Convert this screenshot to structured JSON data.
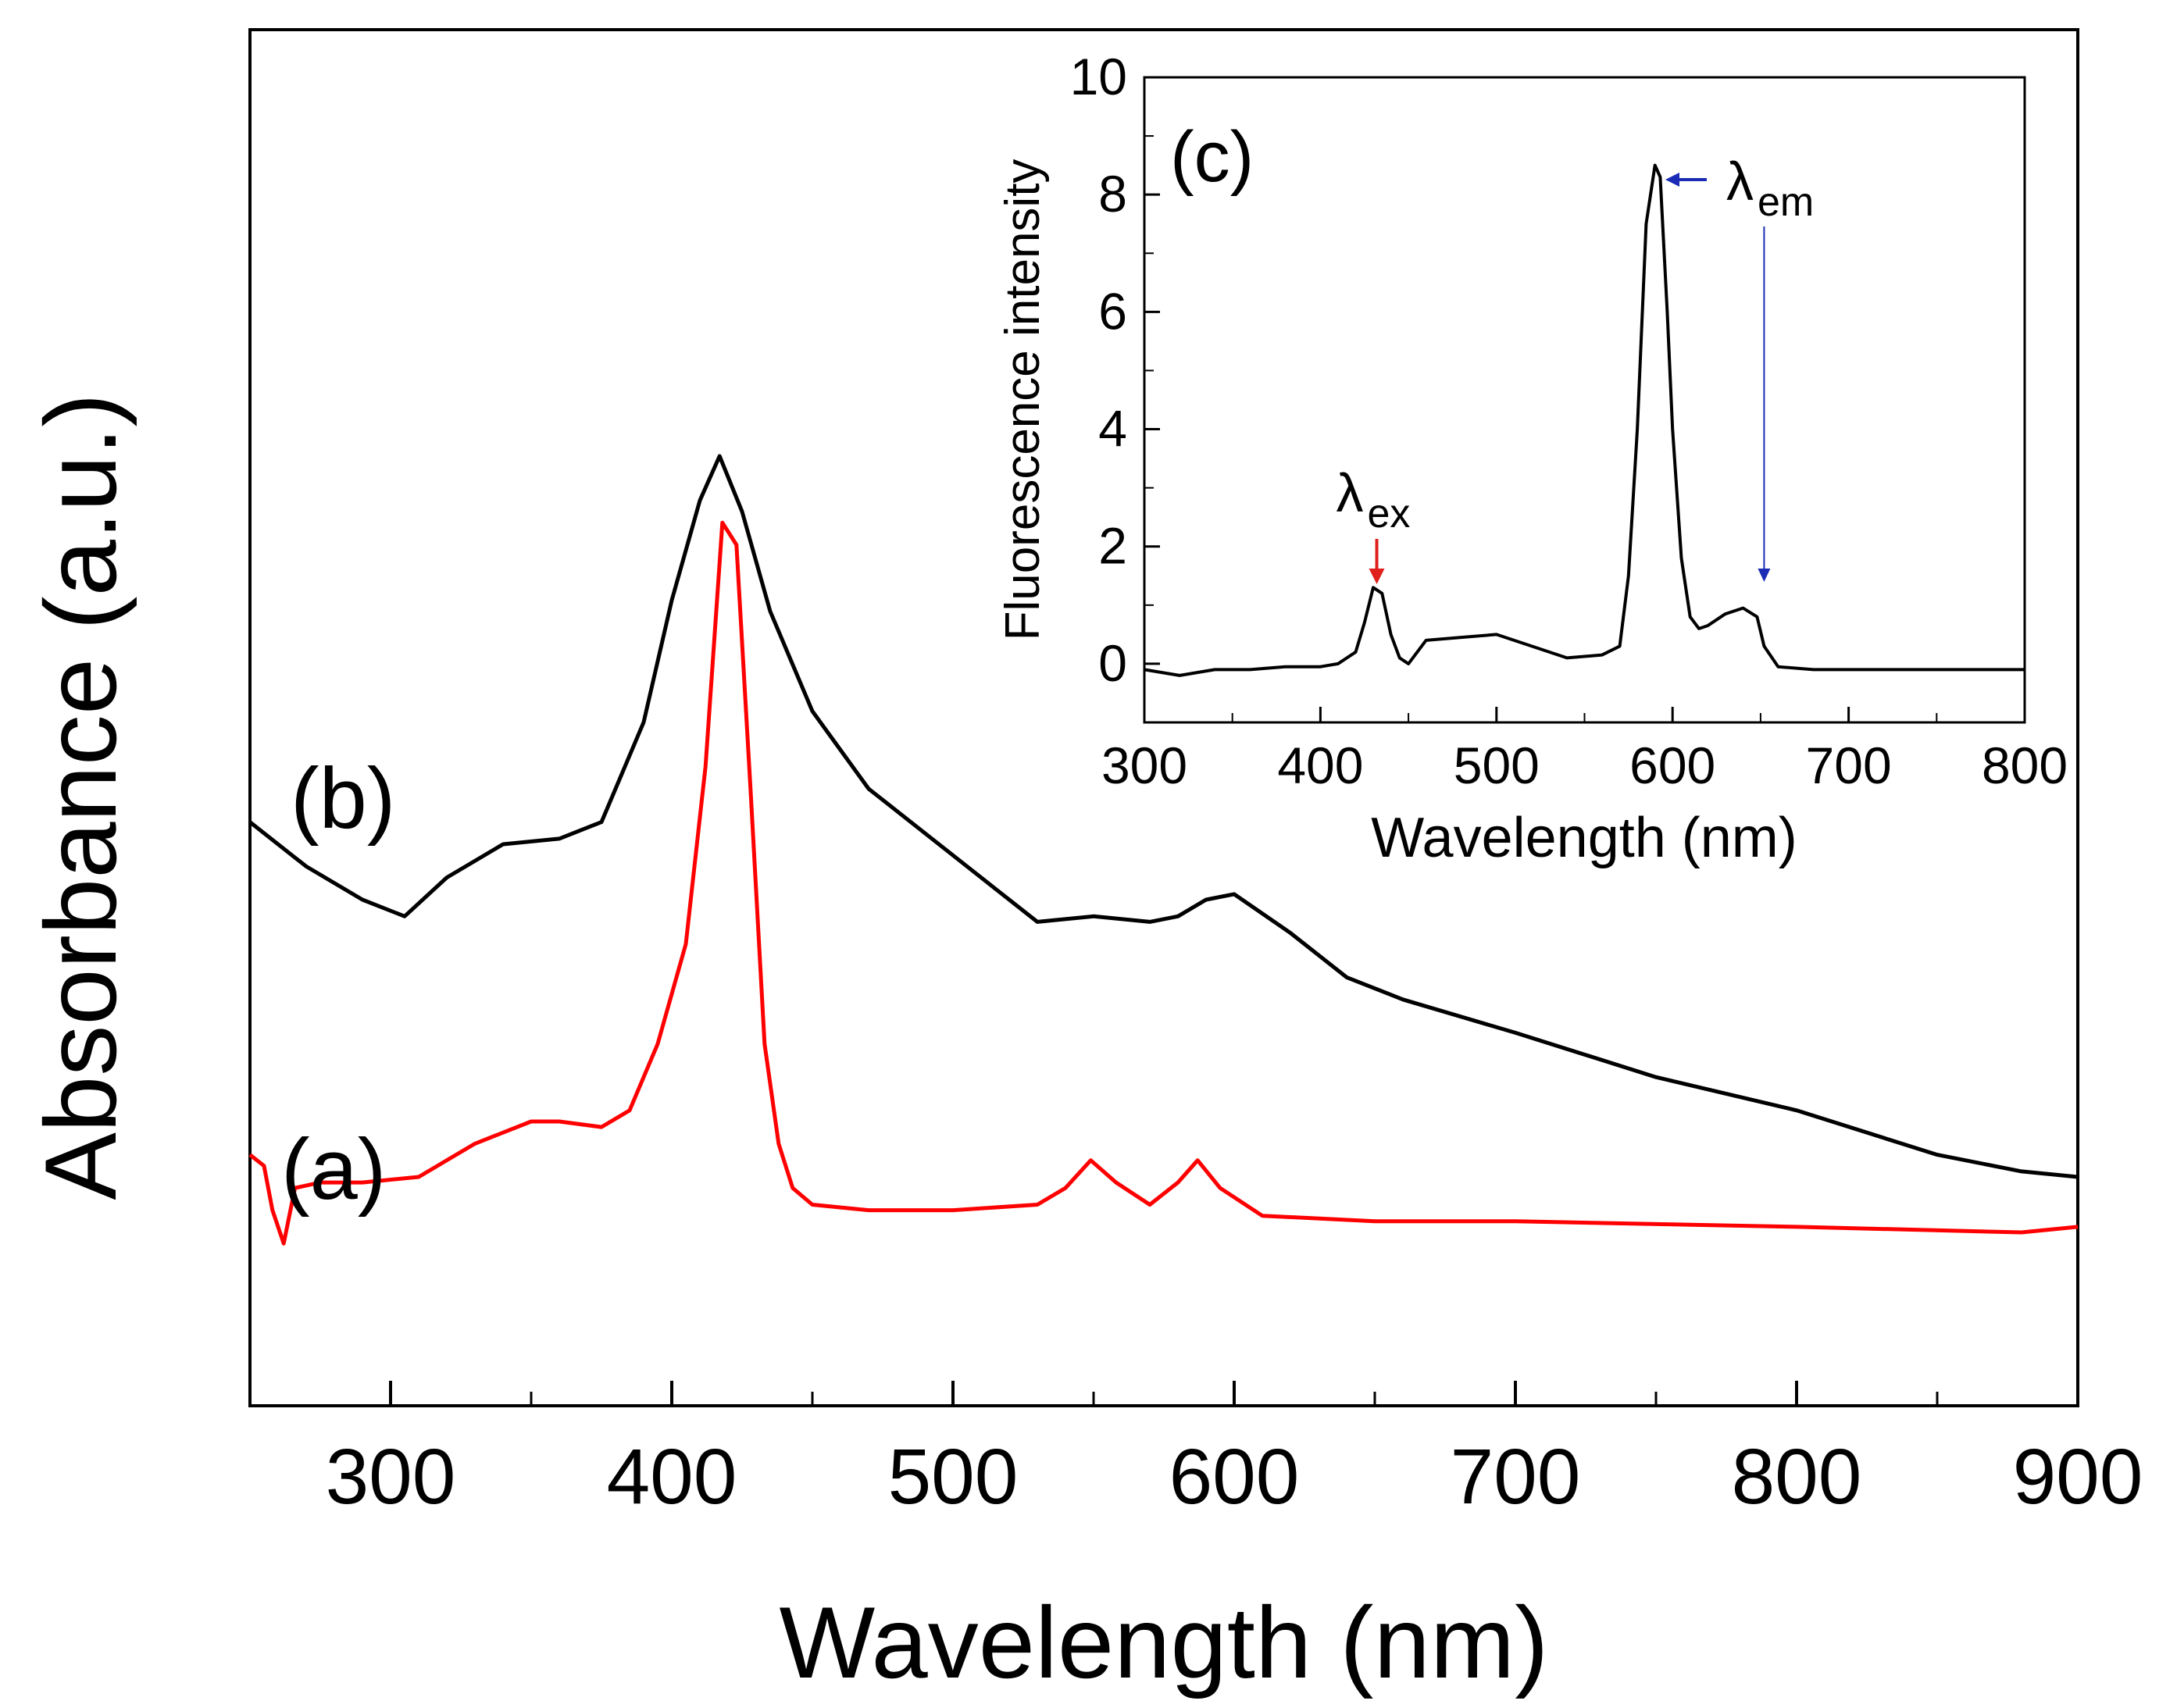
{
  "chart_data": [
    {
      "type": "line",
      "xlabel": "Wavelength (nm)",
      "ylabel": "Absorbance (a.u.)",
      "xlim": [
        250,
        900
      ],
      "ylim": [
        0,
        1
      ],
      "x_ticks": [
        300,
        400,
        500,
        600,
        700,
        800,
        900
      ],
      "y_ticks": [],
      "series": [
        {
          "name": "(b)",
          "color": "#000000",
          "x": [
            250,
            270,
            290,
            305,
            320,
            340,
            360,
            375,
            390,
            400,
            410,
            417,
            425,
            435,
            450,
            470,
            500,
            520,
            530,
            550,
            570,
            580,
            590,
            600,
            620,
            640,
            660,
            700,
            750,
            800,
            850,
            880,
            900
          ],
          "y": [
            0.47,
            0.43,
            0.4,
            0.385,
            0.42,
            0.45,
            0.455,
            0.47,
            0.56,
            0.67,
            0.76,
            0.8,
            0.75,
            0.66,
            0.57,
            0.5,
            0.44,
            0.4,
            0.38,
            0.385,
            0.38,
            0.385,
            0.4,
            0.405,
            0.37,
            0.33,
            0.31,
            0.28,
            0.24,
            0.21,
            0.17,
            0.155,
            0.15
          ]
        },
        {
          "name": "(a)",
          "color": "#ff0000",
          "x": [
            250,
            255,
            258,
            262,
            266,
            275,
            290,
            310,
            330,
            350,
            360,
            375,
            385,
            395,
            405,
            412,
            418,
            423,
            428,
            433,
            438,
            443,
            450,
            470,
            500,
            530,
            540,
            549,
            558,
            570,
            580,
            587,
            595,
            610,
            650,
            700,
            800,
            880,
            900
          ],
          "y": [
            0.17,
            0.16,
            0.12,
            0.09,
            0.14,
            0.145,
            0.145,
            0.15,
            0.18,
            0.2,
            0.2,
            0.195,
            0.21,
            0.27,
            0.36,
            0.52,
            0.74,
            0.72,
            0.5,
            0.27,
            0.18,
            0.14,
            0.125,
            0.12,
            0.12,
            0.125,
            0.14,
            0.165,
            0.145,
            0.125,
            0.145,
            0.165,
            0.14,
            0.115,
            0.11,
            0.11,
            0.105,
            0.1,
            0.105
          ]
        }
      ],
      "annotations": [
        {
          "text": "(b)",
          "color": "#000000"
        },
        {
          "text": "(a)",
          "color": "#ff0000"
        }
      ]
    },
    {
      "type": "line",
      "xlabel": "Wavelength (nm)",
      "ylabel": "Fluorescence intensity",
      "xlim": [
        300,
        800
      ],
      "ylim": [
        -1,
        10
      ],
      "x_ticks": [
        300,
        400,
        500,
        600,
        700,
        800
      ],
      "y_ticks": [
        0,
        2,
        4,
        6,
        8,
        10
      ],
      "series": [
        {
          "name": "fluorescence",
          "color": "#000000",
          "x": [
            300,
            320,
            340,
            360,
            380,
            400,
            410,
            420,
            425,
            430,
            435,
            440,
            445,
            450,
            460,
            480,
            500,
            520,
            540,
            560,
            570,
            575,
            580,
            585,
            590,
            593,
            597,
            600,
            605,
            610,
            615,
            620,
            630,
            640,
            648,
            652,
            660,
            680,
            700,
            740,
            780,
            800
          ],
          "y": [
            -0.1,
            -0.2,
            -0.1,
            -0.1,
            -0.05,
            -0.05,
            0.0,
            0.2,
            0.7,
            1.3,
            1.2,
            0.5,
            0.1,
            0.0,
            0.4,
            0.45,
            0.5,
            0.3,
            0.1,
            0.15,
            0.3,
            1.5,
            4.0,
            7.5,
            8.5,
            8.3,
            6.0,
            4.0,
            1.8,
            0.8,
            0.6,
            0.65,
            0.85,
            0.95,
            0.8,
            0.3,
            -0.05,
            -0.1,
            -0.1,
            -0.1,
            -0.1,
            -0.1
          ]
        }
      ],
      "annotations": [
        {
          "text": "(c)"
        },
        {
          "text": "λ",
          "sub": "ex",
          "arrow_color": "#e0201c",
          "x": 432
        },
        {
          "text": "λ",
          "sub": "em",
          "arrow_color": "#1a2bb5",
          "x": 652
        }
      ]
    }
  ]
}
